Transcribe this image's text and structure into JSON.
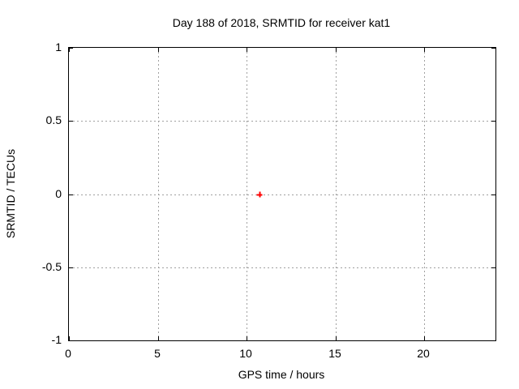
{
  "chart_data": {
    "type": "scatter",
    "title": "Day 188 of 2018, SRMTID for receiver kat1",
    "xlabel": "GPS time / hours",
    "ylabel": "SRMTID / TECUs",
    "xlim": [
      0,
      24
    ],
    "ylim": [
      -1,
      1
    ],
    "x_ticks": [
      0,
      5,
      10,
      15,
      20
    ],
    "x_tick_labels": [
      "0",
      "5",
      "10",
      "15",
      "20"
    ],
    "y_ticks": [
      1,
      0.5,
      0,
      -0.5,
      -1
    ],
    "y_tick_labels": [
      "1",
      "0.5",
      "0",
      "-0.5",
      "-1"
    ],
    "grid": true,
    "legend_position": "none",
    "colors": {
      "background": "#ffffff",
      "border": "#000000",
      "grid": "#a0a0a0",
      "text": "#000000",
      "marker": "#ff0000"
    },
    "series": [
      {
        "name": "SRMTID",
        "marker": "plus",
        "color": "#ff0000",
        "points": [
          {
            "x": 10.7,
            "y": 0.0
          }
        ]
      }
    ]
  }
}
